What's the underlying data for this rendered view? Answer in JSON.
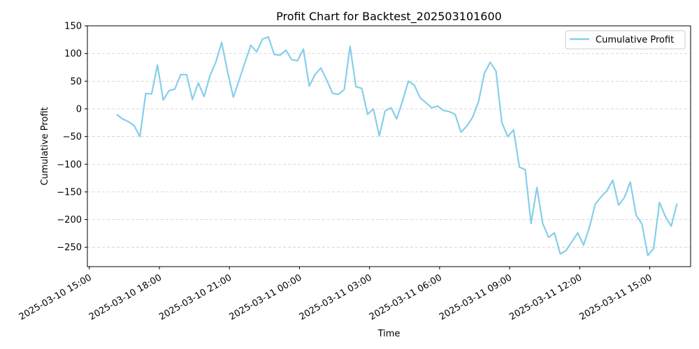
{
  "chart_data": {
    "type": "line",
    "title": "Profit Chart for Backtest_202503101600",
    "xlabel": "Time",
    "ylabel": "Cumulative Profit",
    "legend_position": "top-right",
    "grid": "horizontal dashed",
    "line_color": "#87CEEB",
    "xlim": [
      "2025-03-10 14:55",
      "2025-03-11 16:45"
    ],
    "ylim": [
      -285,
      150
    ],
    "x_ticks": [
      {
        "t": "2025-03-10 15:00",
        "label": "2025-03-10 15:00"
      },
      {
        "t": "2025-03-10 18:00",
        "label": "2025-03-10 18:00"
      },
      {
        "t": "2025-03-10 21:00",
        "label": "2025-03-10 21:00"
      },
      {
        "t": "2025-03-11 00:00",
        "label": "2025-03-11 00:00"
      },
      {
        "t": "2025-03-11 03:00",
        "label": "2025-03-11 03:00"
      },
      {
        "t": "2025-03-11 06:00",
        "label": "2025-03-11 06:00"
      },
      {
        "t": "2025-03-11 09:00",
        "label": "2025-03-11 09:00"
      },
      {
        "t": "2025-03-11 12:00",
        "label": "2025-03-11 12:00"
      },
      {
        "t": "2025-03-11 15:00",
        "label": "2025-03-11 15:00"
      }
    ],
    "y_ticks": [
      150,
      100,
      50,
      0,
      -50,
      -100,
      -150,
      -200,
      -250
    ],
    "series": [
      {
        "name": "Cumulative Profit",
        "points": [
          {
            "t": "2025-03-10 16:10",
            "y": -10
          },
          {
            "t": "2025-03-10 16:25",
            "y": -18
          },
          {
            "t": "2025-03-10 16:40",
            "y": -23
          },
          {
            "t": "2025-03-10 16:55",
            "y": -30
          },
          {
            "t": "2025-03-10 17:10",
            "y": -50
          },
          {
            "t": "2025-03-10 17:25",
            "y": 28
          },
          {
            "t": "2025-03-10 17:40",
            "y": 27
          },
          {
            "t": "2025-03-10 17:55",
            "y": 79
          },
          {
            "t": "2025-03-10 18:10",
            "y": 16
          },
          {
            "t": "2025-03-10 18:25",
            "y": 33
          },
          {
            "t": "2025-03-10 18:40",
            "y": 36
          },
          {
            "t": "2025-03-10 18:55",
            "y": 62
          },
          {
            "t": "2025-03-10 19:10",
            "y": 62
          },
          {
            "t": "2025-03-10 19:25",
            "y": 17
          },
          {
            "t": "2025-03-10 19:40",
            "y": 47
          },
          {
            "t": "2025-03-10 19:55",
            "y": 22
          },
          {
            "t": "2025-03-10 20:10",
            "y": 60
          },
          {
            "t": "2025-03-10 20:25",
            "y": 84
          },
          {
            "t": "2025-03-10 20:40",
            "y": 120
          },
          {
            "t": "2025-03-10 20:55",
            "y": 68
          },
          {
            "t": "2025-03-10 21:10",
            "y": 21
          },
          {
            "t": "2025-03-10 21:25",
            "y": 52
          },
          {
            "t": "2025-03-10 21:40",
            "y": 84
          },
          {
            "t": "2025-03-10 21:55",
            "y": 115
          },
          {
            "t": "2025-03-10 22:10",
            "y": 103
          },
          {
            "t": "2025-03-10 22:25",
            "y": 126
          },
          {
            "t": "2025-03-10 22:40",
            "y": 130
          },
          {
            "t": "2025-03-10 22:55",
            "y": 98
          },
          {
            "t": "2025-03-10 23:10",
            "y": 97
          },
          {
            "t": "2025-03-10 23:25",
            "y": 106
          },
          {
            "t": "2025-03-10 23:40",
            "y": 89
          },
          {
            "t": "2025-03-10 23:55",
            "y": 87
          },
          {
            "t": "2025-03-11 00:10",
            "y": 108
          },
          {
            "t": "2025-03-11 00:25",
            "y": 41
          },
          {
            "t": "2025-03-11 00:40",
            "y": 62
          },
          {
            "t": "2025-03-11 00:55",
            "y": 74
          },
          {
            "t": "2025-03-11 01:10",
            "y": 52
          },
          {
            "t": "2025-03-11 01:25",
            "y": 28
          },
          {
            "t": "2025-03-11 01:40",
            "y": 26
          },
          {
            "t": "2025-03-11 01:55",
            "y": 35
          },
          {
            "t": "2025-03-11 02:10",
            "y": 113
          },
          {
            "t": "2025-03-11 02:25",
            "y": 40
          },
          {
            "t": "2025-03-11 02:40",
            "y": 37
          },
          {
            "t": "2025-03-11 02:55",
            "y": -10
          },
          {
            "t": "2025-03-11 03:10",
            "y": 0
          },
          {
            "t": "2025-03-11 03:25",
            "y": -49
          },
          {
            "t": "2025-03-11 03:40",
            "y": -4
          },
          {
            "t": "2025-03-11 03:55",
            "y": 2
          },
          {
            "t": "2025-03-11 04:10",
            "y": -18
          },
          {
            "t": "2025-03-11 04:25",
            "y": 15
          },
          {
            "t": "2025-03-11 04:40",
            "y": 50
          },
          {
            "t": "2025-03-11 04:55",
            "y": 43
          },
          {
            "t": "2025-03-11 05:10",
            "y": 20
          },
          {
            "t": "2025-03-11 05:25",
            "y": 11
          },
          {
            "t": "2025-03-11 05:40",
            "y": 2
          },
          {
            "t": "2025-03-11 05:55",
            "y": 5
          },
          {
            "t": "2025-03-11 06:10",
            "y": -3
          },
          {
            "t": "2025-03-11 06:25",
            "y": -5
          },
          {
            "t": "2025-03-11 06:40",
            "y": -10
          },
          {
            "t": "2025-03-11 06:55",
            "y": -42
          },
          {
            "t": "2025-03-11 07:10",
            "y": -31
          },
          {
            "t": "2025-03-11 07:25",
            "y": -15
          },
          {
            "t": "2025-03-11 07:40",
            "y": 13
          },
          {
            "t": "2025-03-11 07:55",
            "y": 64
          },
          {
            "t": "2025-03-11 08:10",
            "y": 84
          },
          {
            "t": "2025-03-11 08:25",
            "y": 68
          },
          {
            "t": "2025-03-11 08:40",
            "y": -25
          },
          {
            "t": "2025-03-11 08:55",
            "y": -50
          },
          {
            "t": "2025-03-11 09:10",
            "y": -38
          },
          {
            "t": "2025-03-11 09:25",
            "y": -105
          },
          {
            "t": "2025-03-11 09:40",
            "y": -110
          },
          {
            "t": "2025-03-11 09:55",
            "y": -207
          },
          {
            "t": "2025-03-11 10:10",
            "y": -142
          },
          {
            "t": "2025-03-11 10:25",
            "y": -207
          },
          {
            "t": "2025-03-11 10:40",
            "y": -232
          },
          {
            "t": "2025-03-11 10:55",
            "y": -224
          },
          {
            "t": "2025-03-11 11:10",
            "y": -262
          },
          {
            "t": "2025-03-11 11:25",
            "y": -256
          },
          {
            "t": "2025-03-11 11:40",
            "y": -240
          },
          {
            "t": "2025-03-11 11:55",
            "y": -224
          },
          {
            "t": "2025-03-11 12:10",
            "y": -246
          },
          {
            "t": "2025-03-11 12:25",
            "y": -214
          },
          {
            "t": "2025-03-11 12:40",
            "y": -172
          },
          {
            "t": "2025-03-11 12:55",
            "y": -159
          },
          {
            "t": "2025-03-11 13:10",
            "y": -148
          },
          {
            "t": "2025-03-11 13:25",
            "y": -129
          },
          {
            "t": "2025-03-11 13:40",
            "y": -174
          },
          {
            "t": "2025-03-11 13:55",
            "y": -160
          },
          {
            "t": "2025-03-11 14:10",
            "y": -132
          },
          {
            "t": "2025-03-11 14:25",
            "y": -192
          },
          {
            "t": "2025-03-11 14:40",
            "y": -208
          },
          {
            "t": "2025-03-11 14:55",
            "y": -265
          },
          {
            "t": "2025-03-11 15:10",
            "y": -252
          },
          {
            "t": "2025-03-11 15:25",
            "y": -169
          },
          {
            "t": "2025-03-11 15:40",
            "y": -194
          },
          {
            "t": "2025-03-11 15:55",
            "y": -212
          },
          {
            "t": "2025-03-11 16:10",
            "y": -171
          }
        ]
      }
    ]
  }
}
